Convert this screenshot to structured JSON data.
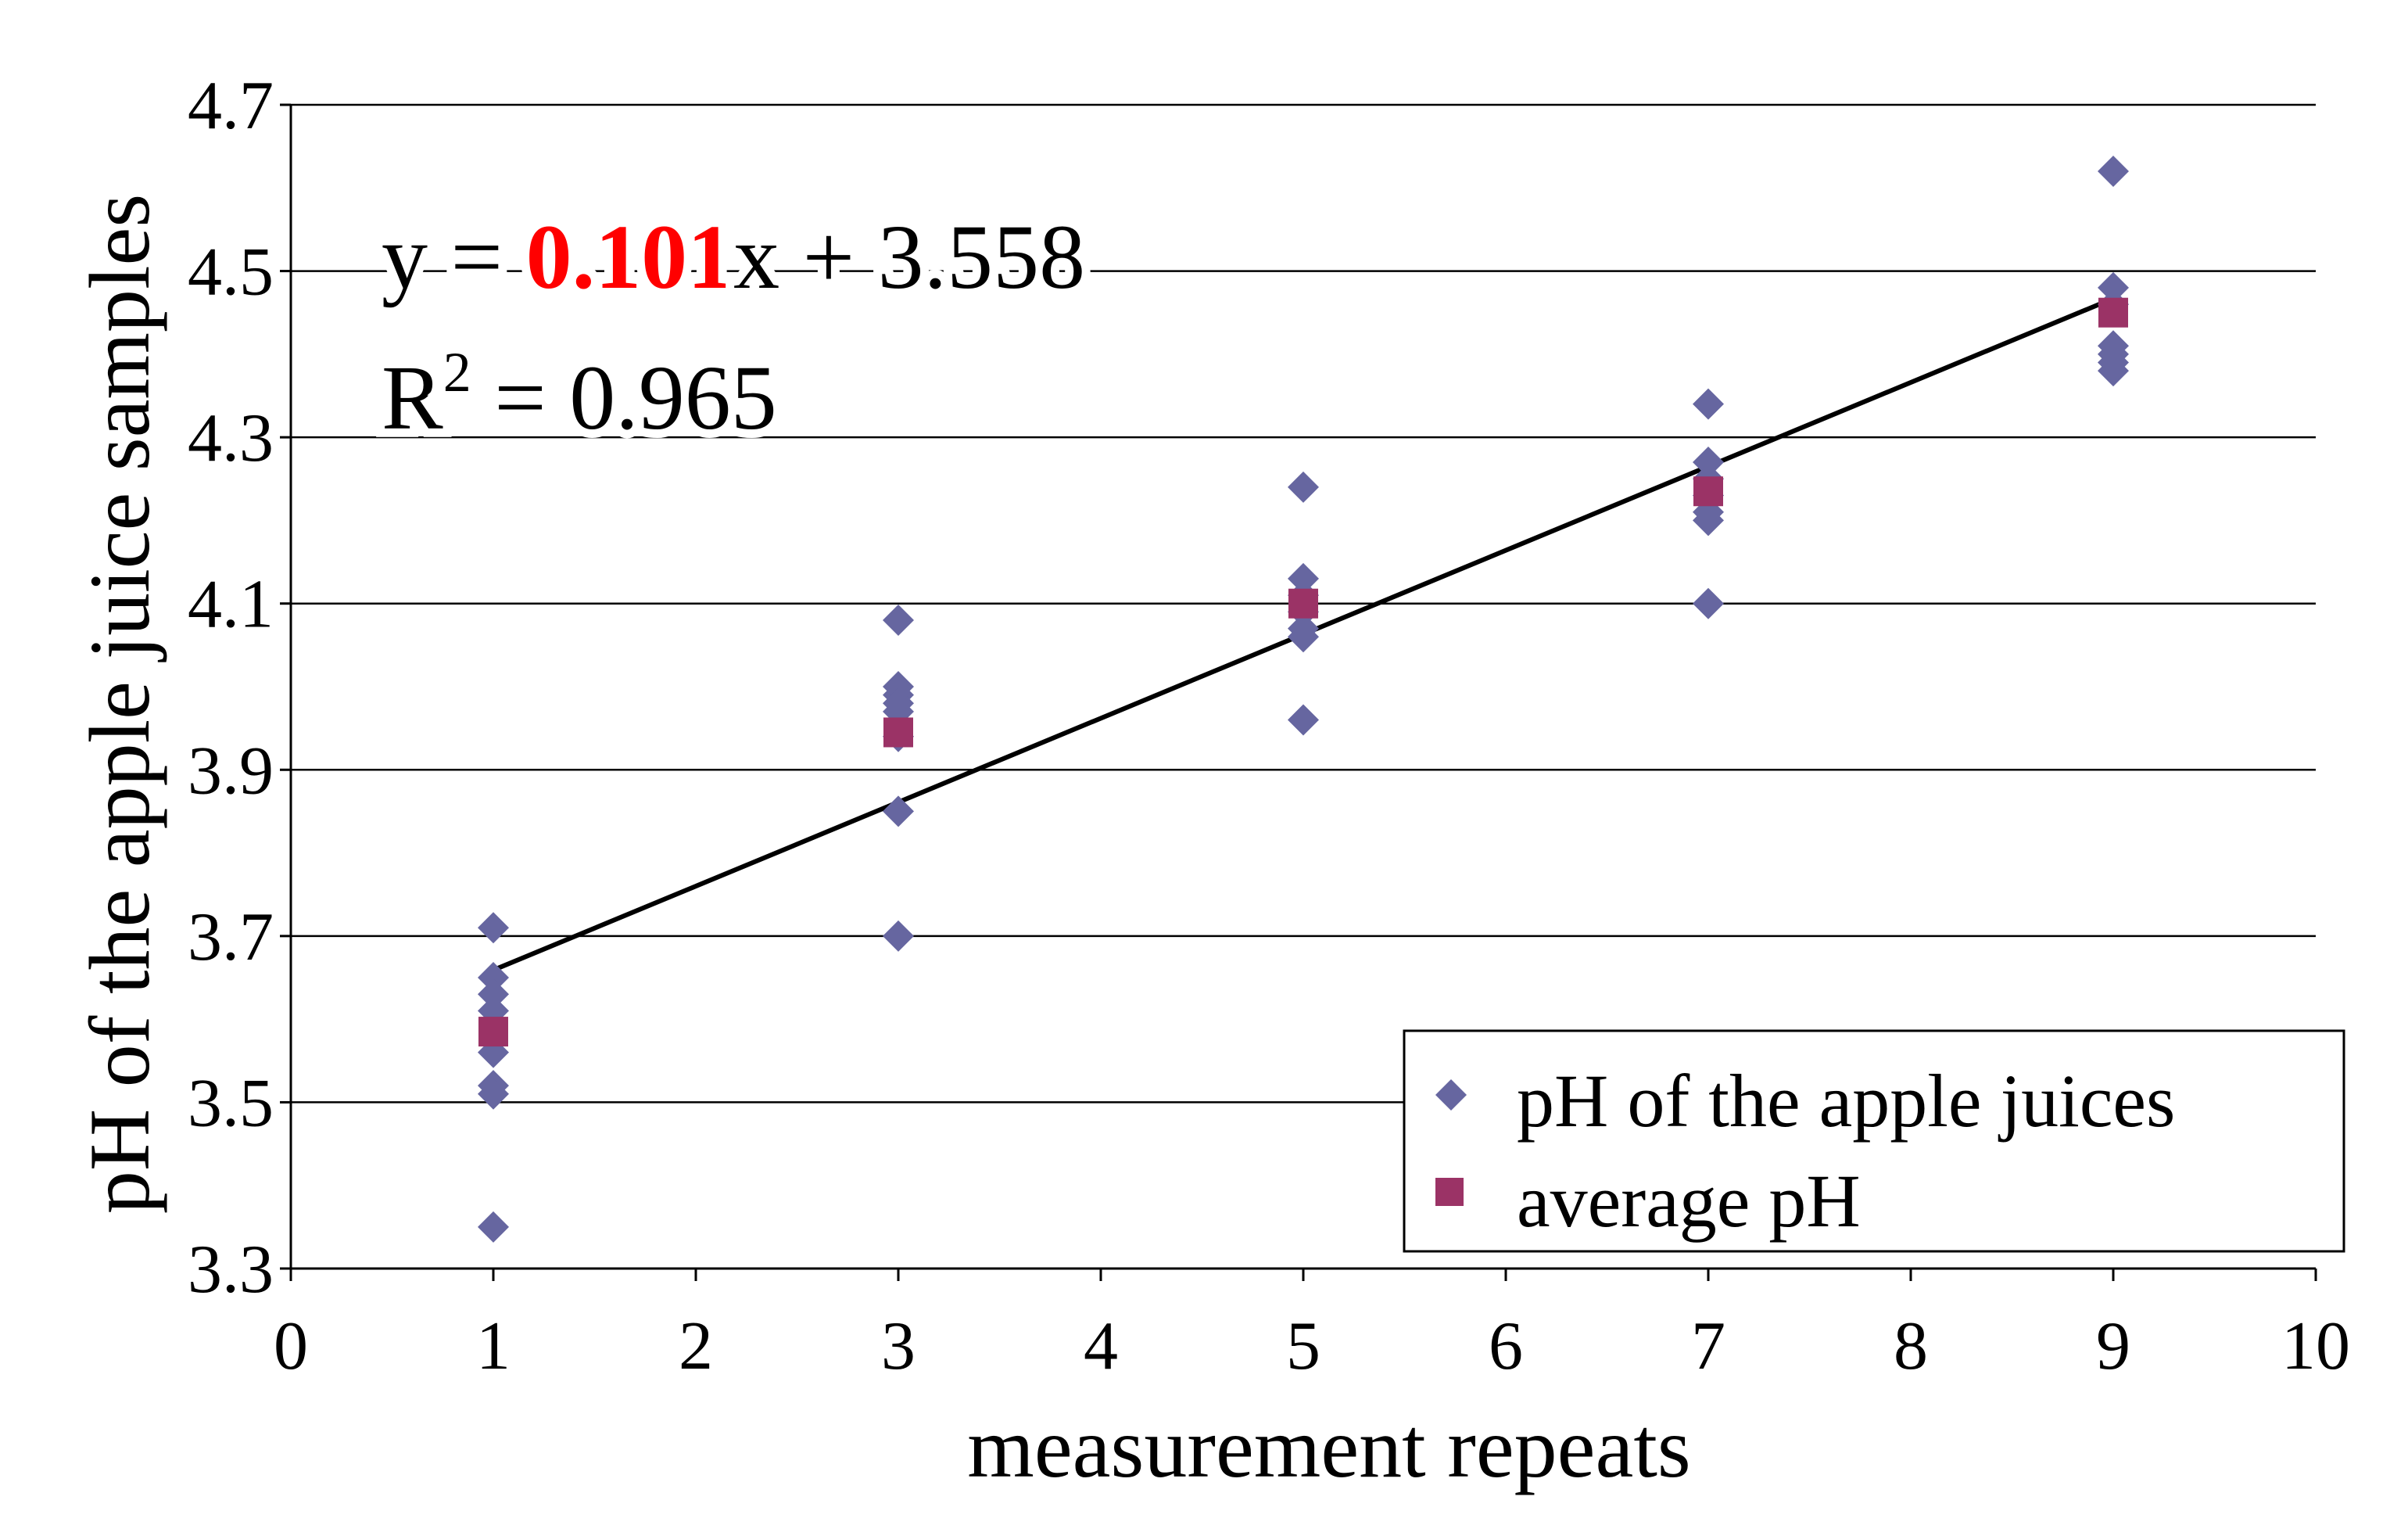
{
  "chart_data": {
    "type": "scatter",
    "xlabel": "measurement repeats",
    "ylabel": "pH of the apple juice samples",
    "xlim": [
      0,
      10
    ],
    "ylim": [
      3.3,
      4.7
    ],
    "x_ticks": [
      0,
      1,
      2,
      3,
      4,
      5,
      6,
      7,
      8,
      9,
      10
    ],
    "x_tick_labels": [
      "0",
      "1",
      "2",
      "3",
      "4",
      "5",
      "6",
      "7",
      "8",
      "9",
      "10"
    ],
    "y_ticks": [
      3.3,
      3.5,
      3.7,
      3.9,
      4.1,
      4.3,
      4.5,
      4.7
    ],
    "y_tick_labels": [
      "3.3",
      "3.5",
      "3.7",
      "3.9",
      "4.1",
      "4.3",
      "4.5",
      "4.7"
    ],
    "grid": "horizontal",
    "series": [
      {
        "name": "pH of the apple juices",
        "marker": "diamond",
        "color": "#6666A0",
        "points": [
          {
            "x": 1,
            "y": 3.71
          },
          {
            "x": 1,
            "y": 3.65
          },
          {
            "x": 1,
            "y": 3.63
          },
          {
            "x": 1,
            "y": 3.61
          },
          {
            "x": 1,
            "y": 3.56
          },
          {
            "x": 1,
            "y": 3.52
          },
          {
            "x": 1,
            "y": 3.51
          },
          {
            "x": 1,
            "y": 3.35
          },
          {
            "x": 3,
            "y": 4.08
          },
          {
            "x": 3,
            "y": 4.0
          },
          {
            "x": 3,
            "y": 3.99
          },
          {
            "x": 3,
            "y": 3.98
          },
          {
            "x": 3,
            "y": 3.97
          },
          {
            "x": 3,
            "y": 3.94
          },
          {
            "x": 3,
            "y": 3.85
          },
          {
            "x": 3,
            "y": 3.7
          },
          {
            "x": 5,
            "y": 4.24
          },
          {
            "x": 5,
            "y": 4.13
          },
          {
            "x": 5,
            "y": 4.11
          },
          {
            "x": 5,
            "y": 4.09
          },
          {
            "x": 5,
            "y": 4.07
          },
          {
            "x": 5,
            "y": 4.06
          },
          {
            "x": 5,
            "y": 3.96
          },
          {
            "x": 7,
            "y": 4.34
          },
          {
            "x": 7,
            "y": 4.27
          },
          {
            "x": 7,
            "y": 4.25
          },
          {
            "x": 7,
            "y": 4.23
          },
          {
            "x": 7,
            "y": 4.21
          },
          {
            "x": 7,
            "y": 4.2
          },
          {
            "x": 7,
            "y": 4.1
          },
          {
            "x": 9,
            "y": 4.62
          },
          {
            "x": 9,
            "y": 4.48
          },
          {
            "x": 9,
            "y": 4.46
          },
          {
            "x": 9,
            "y": 4.41
          },
          {
            "x": 9,
            "y": 4.4
          },
          {
            "x": 9,
            "y": 4.39
          },
          {
            "x": 9,
            "y": 4.38
          }
        ]
      },
      {
        "name": "average pH",
        "marker": "square",
        "color": "#9B3366",
        "points": [
          {
            "x": 1,
            "y": 3.585
          },
          {
            "x": 3,
            "y": 3.945
          },
          {
            "x": 5,
            "y": 4.1
          },
          {
            "x": 7,
            "y": 4.235
          },
          {
            "x": 9,
            "y": 4.45
          }
        ]
      }
    ],
    "trendline": {
      "slope": 0.101,
      "intercept": 3.558,
      "x_range": [
        1,
        9
      ],
      "color": "#000000"
    },
    "annotation": {
      "eq_prefix": "y = ",
      "eq_slope": "0.101",
      "eq_suffix": "x + 3.558",
      "slope_color": "#FF0000",
      "r2_prefix": "R",
      "r2_sup": "2",
      "r2_suffix": " = 0.965"
    },
    "legend": {
      "position": "bottom-right",
      "entries": [
        "pH of the apple juices",
        "average pH"
      ]
    }
  }
}
